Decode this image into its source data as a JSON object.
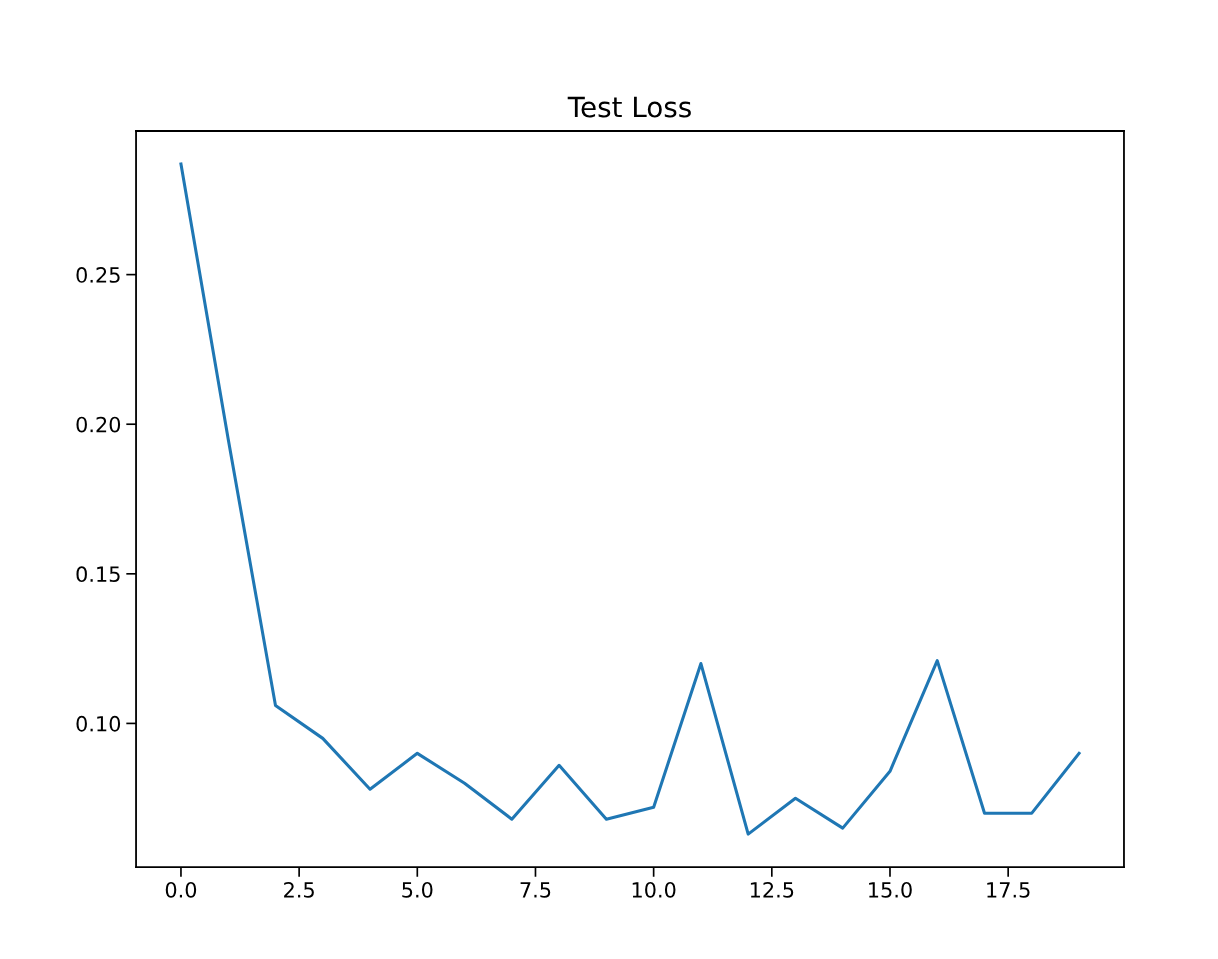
{
  "chart_data": {
    "type": "line",
    "title": "Test Loss",
    "x": [
      0,
      1,
      2,
      3,
      4,
      5,
      6,
      7,
      8,
      9,
      10,
      11,
      12,
      13,
      14,
      15,
      16,
      17,
      18,
      19
    ],
    "series": [
      {
        "color": "#1f77b4",
        "values": [
          0.287,
          0.195,
          0.106,
          0.095,
          0.078,
          0.09,
          0.08,
          0.068,
          0.086,
          0.068,
          0.072,
          0.12,
          0.063,
          0.075,
          0.065,
          0.084,
          0.121,
          0.07,
          0.07,
          0.09
        ]
      }
    ],
    "xlim": [
      -0.95,
      19.95
    ],
    "xticks": [
      {
        "value": 0,
        "label": "0.0"
      },
      {
        "value": 2.5,
        "label": "2.5"
      },
      {
        "value": 5,
        "label": "5.0"
      },
      {
        "value": 7.5,
        "label": "7.5"
      },
      {
        "value": 10,
        "label": "10.0"
      },
      {
        "value": 12.5,
        "label": "12.5"
      },
      {
        "value": 15,
        "label": "15.0"
      },
      {
        "value": 17.5,
        "label": "17.5"
      }
    ],
    "ylim": [
      0.052,
      0.298
    ],
    "yticks": [
      {
        "value": 0.1,
        "label": "0.10"
      },
      {
        "value": 0.15,
        "label": "0.15"
      },
      {
        "value": 0.2,
        "label": "0.20"
      },
      {
        "value": 0.25,
        "label": "0.25"
      }
    ],
    "grid": false,
    "marker": "none",
    "line_style": "solid"
  }
}
